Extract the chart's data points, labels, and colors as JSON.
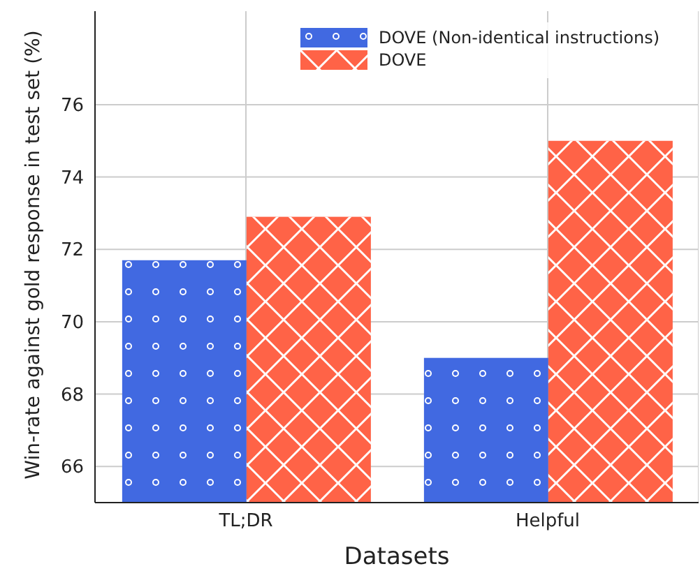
{
  "chart_data": {
    "type": "bar",
    "xlabel": "Datasets",
    "ylabel": "Win-rate against gold response in test set (%)",
    "categories": [
      "TL;DR",
      "Helpful"
    ],
    "series": [
      {
        "name": "DOVE (Non-identical instructions)",
        "color": "#4169e1",
        "values": [
          71.7,
          69.0
        ]
      },
      {
        "name": "DOVE",
        "color": "#ff6347",
        "values": [
          72.9,
          75.0
        ]
      }
    ],
    "ylim": [
      65,
      78.7
    ],
    "yticks": [
      66,
      68,
      70,
      72,
      74,
      76
    ],
    "grid": true,
    "legend": "top right"
  }
}
